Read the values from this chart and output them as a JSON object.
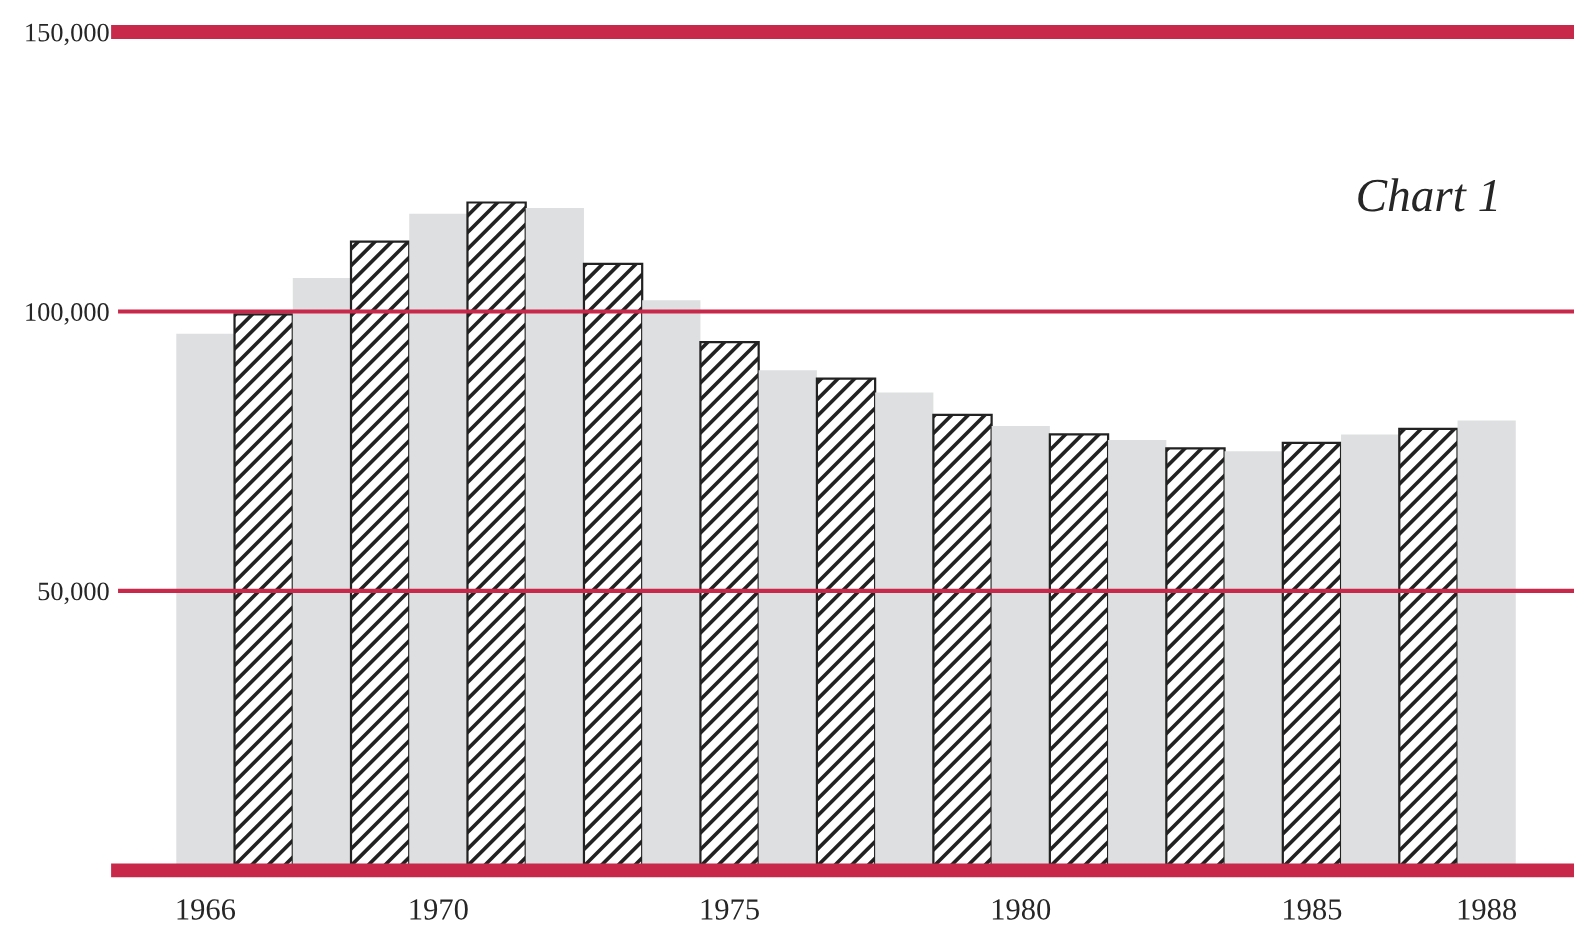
{
  "chart_data": {
    "type": "bar",
    "title": "Chart 1",
    "categories": [
      "1966",
      null,
      null,
      null,
      "1970",
      null,
      null,
      null,
      null,
      "1975",
      null,
      null,
      null,
      null,
      "1980",
      null,
      null,
      null,
      null,
      "1985",
      null,
      null,
      "1988"
    ],
    "values": [
      96000,
      99500,
      106000,
      112500,
      117500,
      119500,
      118500,
      108500,
      102000,
      94500,
      89500,
      88000,
      85500,
      81500,
      79500,
      78000,
      77000,
      75500,
      75000,
      76500,
      78000,
      79000,
      80500
    ],
    "colors": [
      "#dedfe0",
      "#222222",
      "#dedfe0",
      "#222222",
      "#dedfe0",
      "#222222",
      "#dedfe0",
      "#222222",
      "#dedfe0",
      "#222222",
      "#dedfe0",
      "#222222",
      "#dedfe0",
      "#222222",
      "#dedfe0",
      "#222222",
      "#dedfe0",
      "#222222",
      "#dedfe0",
      "#222222",
      "#dedfe0",
      "#222222",
      "#dedfe0"
    ],
    "ylim": [
      0,
      150000
    ],
    "yticks": [
      {
        "value": 0,
        "label": null
      },
      {
        "value": 50000,
        "label": "50,000"
      },
      {
        "value": 100000,
        "label": "100,000"
      },
      {
        "value": 150000,
        "label": "150,000"
      }
    ],
    "grid": "y"
  }
}
